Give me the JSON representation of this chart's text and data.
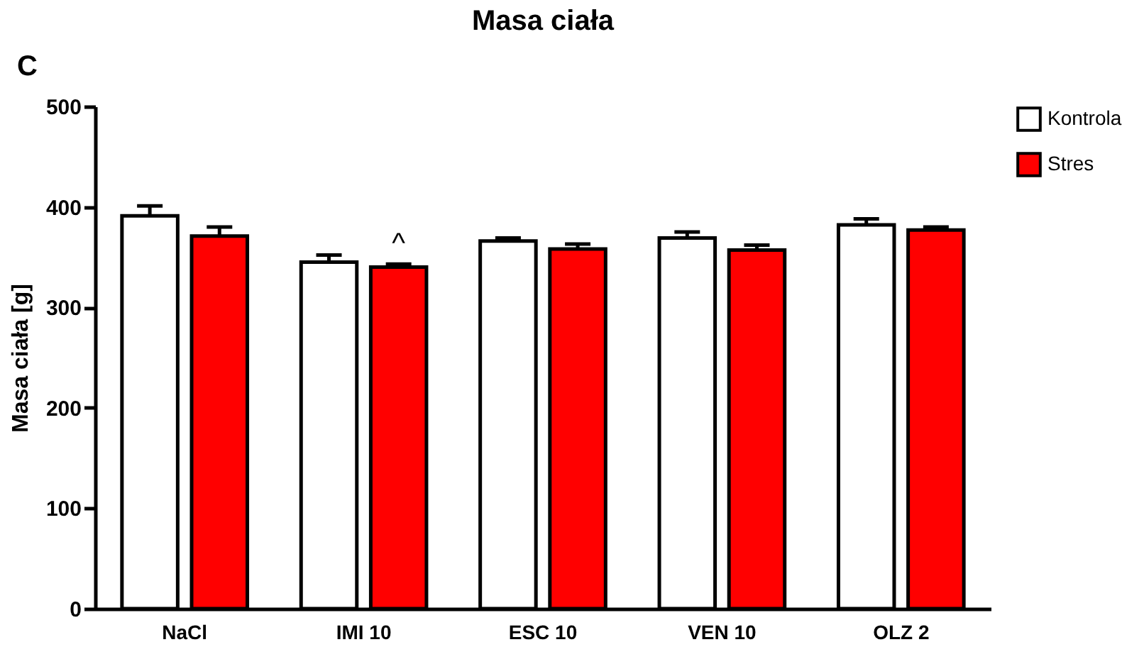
{
  "chart_data": {
    "type": "bar",
    "title": "Masa ciała",
    "ylabel": "Masa ciała [g]",
    "categories": [
      "NaCl",
      "IMI 10",
      "ESC 10",
      "VEN 10",
      "OLZ 2"
    ],
    "series": [
      {
        "name": "Kontrola",
        "color": "#ffffff",
        "values": [
          391,
          345,
          366,
          369,
          382
        ],
        "errors": [
          [
            391,
            401
          ],
          [
            345,
            352
          ],
          [
            366,
            369
          ],
          [
            369,
            375
          ],
          [
            382,
            388
          ]
        ]
      },
      {
        "name": "Stres",
        "color": "#ff0000",
        "values": [
          371,
          340,
          358,
          357,
          377
        ],
        "errors": [
          [
            371,
            380
          ],
          [
            340,
            343
          ],
          [
            358,
            363
          ],
          [
            357,
            362
          ],
          [
            377,
            380
          ]
        ]
      }
    ],
    "ylim": [
      0,
      500
    ],
    "yticks": [
      0,
      100,
      200,
      300,
      400,
      500
    ],
    "grid": false,
    "legend": "top right",
    "annotations": [
      "C",
      {
        "text": "^",
        "x": "IMI 10",
        "y": 343
      }
    ]
  }
}
